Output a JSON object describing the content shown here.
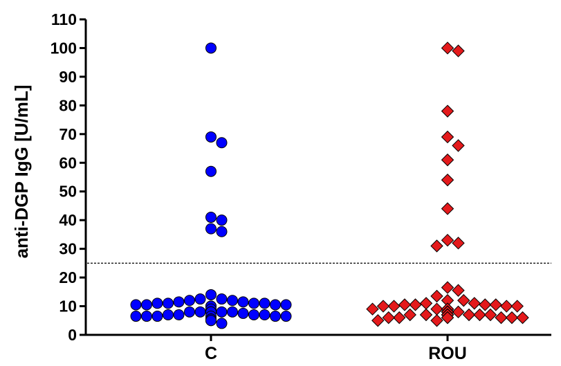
{
  "chart_data": {
    "type": "scatter",
    "ylabel": "anti-DGP IgG [U/mL]",
    "xlabel": "",
    "ylim": [
      0,
      110
    ],
    "yticks": [
      0,
      10,
      20,
      30,
      40,
      50,
      60,
      70,
      80,
      90,
      100,
      110
    ],
    "categories": [
      "C",
      "ROU"
    ],
    "cutoff": 25,
    "grid": false,
    "series": [
      {
        "category": "C",
        "marker": "circle",
        "color": "#0000ff",
        "values": [
          100,
          69,
          67,
          57,
          41,
          40,
          37,
          36,
          14,
          12.5,
          12.5,
          12,
          12,
          11.5,
          11.5,
          11,
          11,
          11,
          11,
          10.5,
          10.5,
          10.5,
          10.5,
          10,
          10,
          10,
          9,
          8,
          8,
          8,
          8,
          8,
          8,
          8,
          8,
          7.5,
          7,
          7,
          7,
          7,
          6.5,
          6.5,
          6.5,
          6.5,
          6.5,
          6.5,
          5.5,
          5.5,
          5.5,
          5.5,
          5.5,
          5.5,
          5,
          5,
          4
        ]
      },
      {
        "category": "ROU",
        "marker": "diamond",
        "color": "#e41a1c",
        "values": [
          100,
          99,
          78,
          69,
          66,
          61,
          54,
          44,
          33,
          32,
          31,
          16.5,
          15.5,
          13.5,
          12,
          12,
          11,
          11,
          10.5,
          10.5,
          10.5,
          10.5,
          10,
          10,
          10,
          10,
          9,
          9,
          9,
          9,
          9,
          9,
          9,
          8,
          8,
          8,
          8,
          8,
          8,
          8,
          8,
          8,
          8,
          7,
          7,
          7,
          7,
          7,
          7,
          7,
          7,
          7,
          7,
          7,
          7,
          6,
          6,
          6,
          6,
          6,
          6,
          6,
          5,
          5
        ]
      }
    ]
  }
}
